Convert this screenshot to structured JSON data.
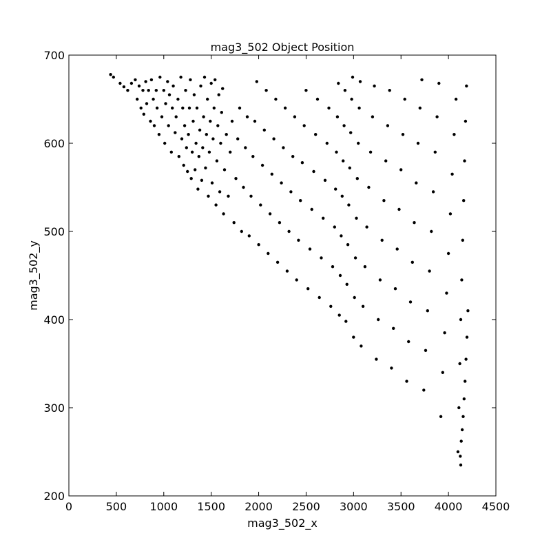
{
  "chart_data": {
    "type": "scatter",
    "title": "mag3_502 Object Position",
    "xlabel": "mag3_502_x",
    "ylabel": "mag3_502_y",
    "xlim": [
      0,
      4500
    ],
    "ylim": [
      200,
      700
    ],
    "xticks": [
      0,
      500,
      1000,
      1500,
      2000,
      2500,
      3000,
      3500,
      4000,
      4500
    ],
    "yticks": [
      200,
      300,
      400,
      500,
      600,
      700
    ],
    "grid": false,
    "legend": "none",
    "marker_color": "#000000",
    "series": [
      {
        "values_note_excluded": true,
        "points": [
          [
            440,
            678
          ],
          [
            470,
            675
          ],
          [
            540,
            668
          ],
          [
            580,
            664
          ],
          [
            620,
            660
          ],
          [
            660,
            668
          ],
          [
            700,
            672
          ],
          [
            720,
            650
          ],
          [
            740,
            665
          ],
          [
            760,
            640
          ],
          [
            780,
            660
          ],
          [
            790,
            633
          ],
          [
            810,
            670
          ],
          [
            820,
            645
          ],
          [
            840,
            660
          ],
          [
            860,
            625
          ],
          [
            870,
            672
          ],
          [
            890,
            650
          ],
          [
            900,
            620
          ],
          [
            920,
            660
          ],
          [
            930,
            640
          ],
          [
            950,
            610
          ],
          [
            960,
            675
          ],
          [
            980,
            630
          ],
          [
            1000,
            660
          ],
          [
            1010,
            600
          ],
          [
            1020,
            645
          ],
          [
            1040,
            670
          ],
          [
            1050,
            620
          ],
          [
            1060,
            655
          ],
          [
            1080,
            590
          ],
          [
            1090,
            640
          ],
          [
            1100,
            665
          ],
          [
            1120,
            612
          ],
          [
            1130,
            630
          ],
          [
            1150,
            650
          ],
          [
            1160,
            585
          ],
          [
            1180,
            675
          ],
          [
            1190,
            605
          ],
          [
            1200,
            640
          ],
          [
            1210,
            575
          ],
          [
            1220,
            620
          ],
          [
            1230,
            660
          ],
          [
            1240,
            595
          ],
          [
            1250,
            568
          ],
          [
            1260,
            610
          ],
          [
            1270,
            640
          ],
          [
            1280,
            672
          ],
          [
            1290,
            560
          ],
          [
            1300,
            590
          ],
          [
            1310,
            625
          ],
          [
            1320,
            655
          ],
          [
            1330,
            570
          ],
          [
            1340,
            600
          ],
          [
            1350,
            640
          ],
          [
            1360,
            548
          ],
          [
            1370,
            585
          ],
          [
            1380,
            615
          ],
          [
            1390,
            665
          ],
          [
            1400,
            558
          ],
          [
            1410,
            595
          ],
          [
            1420,
            630
          ],
          [
            1430,
            675
          ],
          [
            1440,
            572
          ],
          [
            1450,
            610
          ],
          [
            1460,
            650
          ],
          [
            1470,
            540
          ],
          [
            1480,
            590
          ],
          [
            1490,
            625
          ],
          [
            1500,
            668
          ],
          [
            1510,
            555
          ],
          [
            1520,
            605
          ],
          [
            1530,
            640
          ],
          [
            1540,
            672
          ],
          [
            1550,
            530
          ],
          [
            1560,
            580
          ],
          [
            1570,
            620
          ],
          [
            1580,
            655
          ],
          [
            1590,
            545
          ],
          [
            1600,
            600
          ],
          [
            1610,
            635
          ],
          [
            1620,
            662
          ],
          [
            1630,
            520
          ],
          [
            1640,
            570
          ],
          [
            1660,
            610
          ],
          [
            1680,
            540
          ],
          [
            1700,
            590
          ],
          [
            1720,
            625
          ],
          [
            1740,
            510
          ],
          [
            1760,
            560
          ],
          [
            1780,
            605
          ],
          [
            1800,
            640
          ],
          [
            1820,
            500
          ],
          [
            1840,
            550
          ],
          [
            1860,
            595
          ],
          [
            1880,
            630
          ],
          [
            1900,
            495
          ],
          [
            1920,
            540
          ],
          [
            1940,
            585
          ],
          [
            1960,
            625
          ],
          [
            1980,
            670
          ],
          [
            2000,
            485
          ],
          [
            2020,
            530
          ],
          [
            2040,
            575
          ],
          [
            2060,
            615
          ],
          [
            2080,
            660
          ],
          [
            2100,
            475
          ],
          [
            2120,
            520
          ],
          [
            2140,
            565
          ],
          [
            2160,
            605
          ],
          [
            2180,
            650
          ],
          [
            2200,
            465
          ],
          [
            2220,
            510
          ],
          [
            2240,
            555
          ],
          [
            2260,
            595
          ],
          [
            2280,
            640
          ],
          [
            2300,
            455
          ],
          [
            2320,
            500
          ],
          [
            2340,
            545
          ],
          [
            2360,
            585
          ],
          [
            2380,
            630
          ],
          [
            2400,
            445
          ],
          [
            2420,
            490
          ],
          [
            2440,
            535
          ],
          [
            2460,
            578
          ],
          [
            2480,
            620
          ],
          [
            2500,
            660
          ],
          [
            2520,
            435
          ],
          [
            2540,
            480
          ],
          [
            2560,
            525
          ],
          [
            2580,
            568
          ],
          [
            2600,
            610
          ],
          [
            2620,
            650
          ],
          [
            2640,
            425
          ],
          [
            2660,
            470
          ],
          [
            2680,
            515
          ],
          [
            2700,
            558
          ],
          [
            2720,
            600
          ],
          [
            2740,
            640
          ],
          [
            2760,
            415
          ],
          [
            2780,
            460
          ],
          [
            2800,
            505
          ],
          [
            2810,
            548
          ],
          [
            2820,
            590
          ],
          [
            2830,
            630
          ],
          [
            2840,
            668
          ],
          [
            2850,
            405
          ],
          [
            2860,
            450
          ],
          [
            2870,
            495
          ],
          [
            2880,
            540
          ],
          [
            2890,
            580
          ],
          [
            2900,
            620
          ],
          [
            2910,
            660
          ],
          [
            2920,
            398
          ],
          [
            2930,
            440
          ],
          [
            2940,
            485
          ],
          [
            2950,
            530
          ],
          [
            2960,
            572
          ],
          [
            2970,
            612
          ],
          [
            2980,
            650
          ],
          [
            2990,
            675
          ],
          [
            3000,
            380
          ],
          [
            3010,
            425
          ],
          [
            3020,
            470
          ],
          [
            3030,
            515
          ],
          [
            3040,
            560
          ],
          [
            3050,
            600
          ],
          [
            3060,
            640
          ],
          [
            3070,
            670
          ],
          [
            3080,
            370
          ],
          [
            3100,
            415
          ],
          [
            3120,
            460
          ],
          [
            3140,
            505
          ],
          [
            3160,
            550
          ],
          [
            3180,
            590
          ],
          [
            3200,
            630
          ],
          [
            3220,
            665
          ],
          [
            3240,
            355
          ],
          [
            3260,
            400
          ],
          [
            3280,
            445
          ],
          [
            3300,
            490
          ],
          [
            3320,
            535
          ],
          [
            3340,
            580
          ],
          [
            3360,
            620
          ],
          [
            3380,
            660
          ],
          [
            3400,
            345
          ],
          [
            3420,
            390
          ],
          [
            3440,
            435
          ],
          [
            3460,
            480
          ],
          [
            3480,
            525
          ],
          [
            3500,
            570
          ],
          [
            3520,
            610
          ],
          [
            3540,
            650
          ],
          [
            3560,
            330
          ],
          [
            3580,
            375
          ],
          [
            3600,
            420
          ],
          [
            3620,
            465
          ],
          [
            3640,
            510
          ],
          [
            3660,
            555
          ],
          [
            3680,
            600
          ],
          [
            3700,
            640
          ],
          [
            3720,
            672
          ],
          [
            3740,
            320
          ],
          [
            3760,
            365
          ],
          [
            3780,
            410
          ],
          [
            3800,
            455
          ],
          [
            3820,
            500
          ],
          [
            3840,
            545
          ],
          [
            3860,
            590
          ],
          [
            3880,
            630
          ],
          [
            3900,
            668
          ],
          [
            3920,
            290
          ],
          [
            3940,
            340
          ],
          [
            3960,
            385
          ],
          [
            3980,
            430
          ],
          [
            4000,
            475
          ],
          [
            4020,
            520
          ],
          [
            4040,
            565
          ],
          [
            4060,
            610
          ],
          [
            4080,
            650
          ],
          [
            4100,
            250
          ],
          [
            4110,
            300
          ],
          [
            4120,
            350
          ],
          [
            4130,
            400
          ],
          [
            4140,
            445
          ],
          [
            4150,
            490
          ],
          [
            4160,
            535
          ],
          [
            4170,
            580
          ],
          [
            4180,
            625
          ],
          [
            4190,
            665
          ],
          [
            4130,
            235
          ],
          [
            4125,
            245
          ],
          [
            4135,
            262
          ],
          [
            4145,
            275
          ],
          [
            4155,
            290
          ],
          [
            4165,
            310
          ],
          [
            4175,
            330
          ],
          [
            4185,
            355
          ],
          [
            4195,
            380
          ],
          [
            4205,
            410
          ]
        ]
      }
    ]
  }
}
